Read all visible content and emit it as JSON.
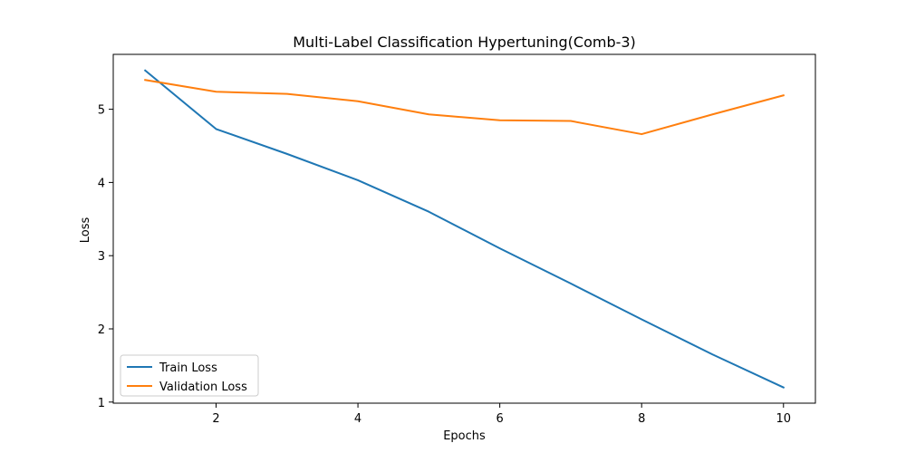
{
  "chart_data": {
    "type": "line",
    "title": "Multi-Label Classification Hypertuning(Comb-3)",
    "xlabel": "Epochs",
    "ylabel": "Loss",
    "x": [
      1,
      2,
      3,
      4,
      5,
      6,
      7,
      8,
      9,
      10
    ],
    "xlim": [
      0.55,
      10.45
    ],
    "ylim": [
      0.985,
      5.75
    ],
    "xticks": [
      2,
      4,
      6,
      8,
      10
    ],
    "yticks": [
      1,
      2,
      3,
      4,
      5
    ],
    "grid": false,
    "legend_position": "lower-left",
    "series": [
      {
        "name": "Train Loss",
        "color": "#1f77b4",
        "values": [
          5.53,
          4.73,
          4.39,
          4.03,
          3.6,
          3.1,
          2.62,
          2.13,
          1.65,
          1.2
        ]
      },
      {
        "name": "Validation Loss",
        "color": "#ff7f0e",
        "values": [
          5.4,
          5.24,
          5.21,
          5.11,
          4.93,
          4.85,
          4.84,
          4.66,
          4.93,
          5.19
        ]
      }
    ]
  }
}
